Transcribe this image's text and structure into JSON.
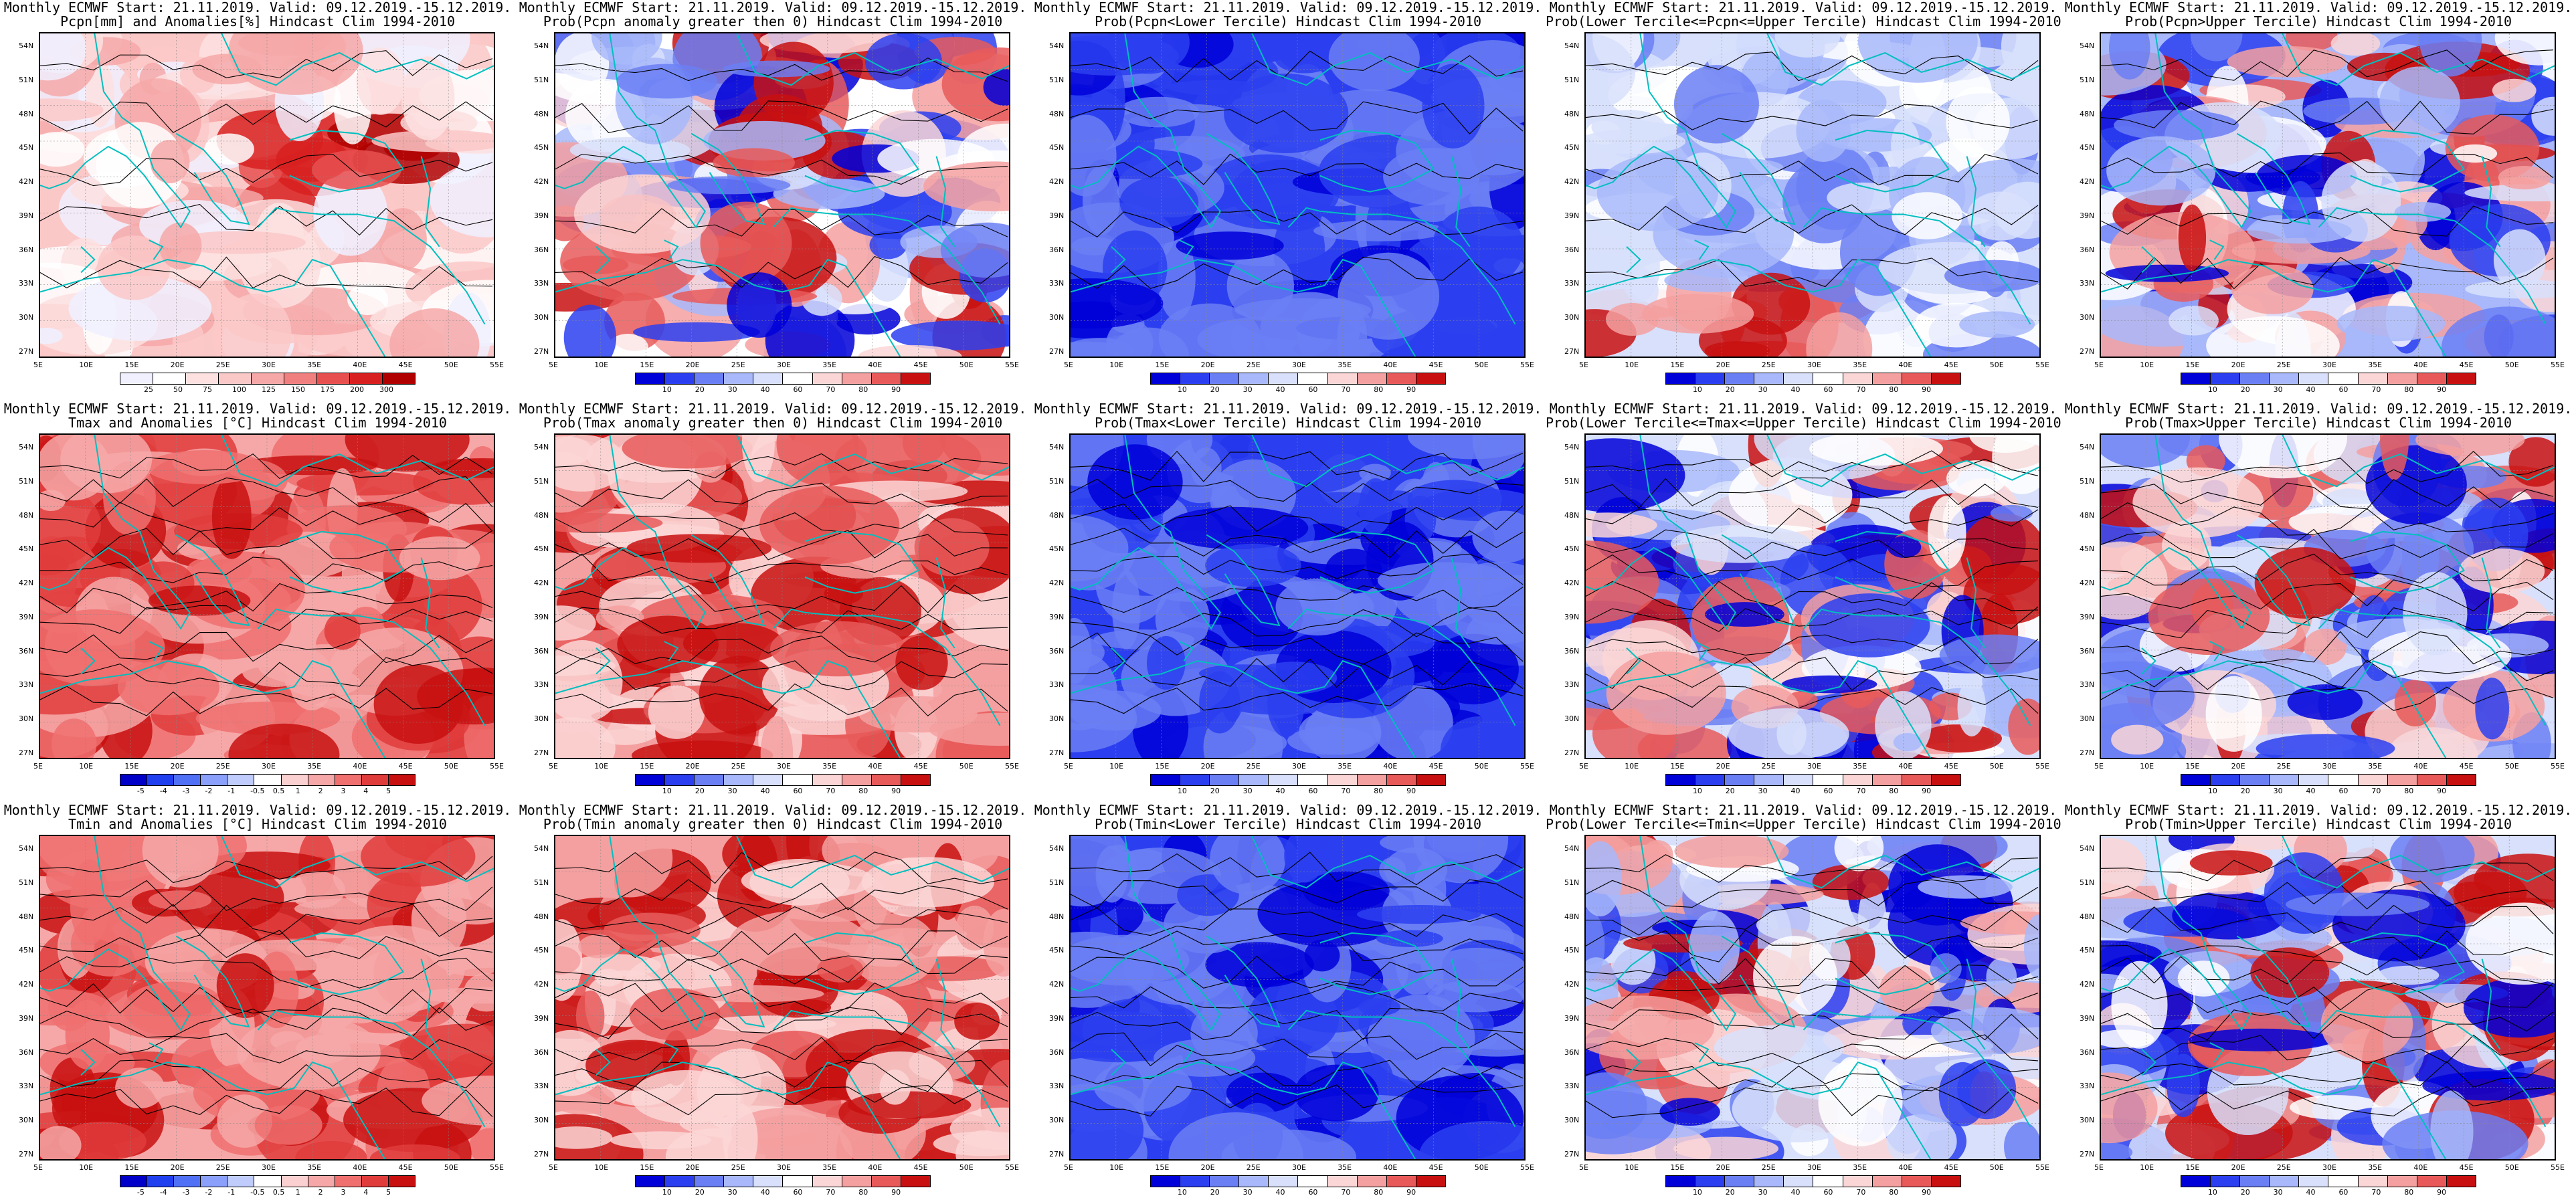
{
  "figure": {
    "panels": [
      {
        "title_line1": "Monthly ECMWF Start: 21.11.2019. Valid: 09.12.2019.-15.12.2019.",
        "title_line2": "Pcpn[mm] and Anomalies[%] Hindcast Clim 1994-2010",
        "palette": "anom_pos",
        "colorbar_ticks": [
          "25",
          "50",
          "75",
          "100",
          "125",
          "150",
          "175",
          "200",
          "300"
        ]
      },
      {
        "title_line1": "Monthly ECMWF Start: 21.11.2019. Valid: 09.12.2019.-15.12.2019.",
        "title_line2": "Prob(Pcpn anomaly greater then 0) Hindcast Clim 1994-2010",
        "palette": "prob",
        "colorbar_ticks": [
          "10",
          "20",
          "30",
          "40",
          "60",
          "70",
          "80",
          "90"
        ]
      },
      {
        "title_line1": "Monthly ECMWF Start: 21.11.2019. Valid: 09.12.2019.-15.12.2019.",
        "title_line2": "Prob(Pcpn<Lower Tercile) Hindcast Clim 1994-2010",
        "palette": "prob",
        "colorbar_ticks": [
          "10",
          "20",
          "30",
          "40",
          "60",
          "70",
          "80",
          "90"
        ]
      },
      {
        "title_line1": "Monthly ECMWF Start: 21.11.2019. Valid: 09.12.2019.-15.12.2019.",
        "title_line2": "Prob(Lower Tercile<=Pcpn<=Upper Tercile) Hindcast Clim 1994-2010",
        "palette": "prob",
        "colorbar_ticks": [
          "10",
          "20",
          "30",
          "40",
          "60",
          "70",
          "80",
          "90"
        ]
      },
      {
        "title_line1": "Monthly ECMWF Start: 21.11.2019. Valid: 09.12.2019.-15.12.2019.",
        "title_line2": "Prob(Pcpn>Upper Tercile) Hindcast Clim 1994-2010",
        "palette": "prob",
        "colorbar_ticks": [
          "10",
          "20",
          "30",
          "40",
          "60",
          "70",
          "80",
          "90"
        ]
      },
      {
        "title_line1": "Monthly ECMWF Start: 21.11.2019. Valid: 09.12.2019.-15.12.2019.",
        "title_line2": "Tmax and Anomalies [°C] Hindcast Clim 1994-2010",
        "palette": "temp",
        "colorbar_ticks": [
          "-5",
          "-4",
          "-3",
          "-2",
          "-1",
          "-0.5",
          "0.5",
          "1",
          "2",
          "3",
          "4",
          "5"
        ]
      },
      {
        "title_line1": "Monthly ECMWF Start: 21.11.2019. Valid: 09.12.2019.-15.12.2019.",
        "title_line2": "Prob(Tmax anomaly greater then 0) Hindcast Clim 1994-2010",
        "palette": "prob",
        "colorbar_ticks": [
          "10",
          "20",
          "30",
          "40",
          "60",
          "70",
          "80",
          "90"
        ]
      },
      {
        "title_line1": "Monthly ECMWF Start: 21.11.2019. Valid: 09.12.2019.-15.12.2019.",
        "title_line2": "Prob(Tmax<Lower Tercile) Hindcast Clim 1994-2010",
        "palette": "prob",
        "colorbar_ticks": [
          "10",
          "20",
          "30",
          "40",
          "60",
          "70",
          "80",
          "90"
        ]
      },
      {
        "title_line1": "Monthly ECMWF Start: 21.11.2019. Valid: 09.12.2019.-15.12.2019.",
        "title_line2": "Prob(Lower Tercile<=Tmax<=Upper Tercile) Hindcast Clim 1994-2010",
        "palette": "prob",
        "colorbar_ticks": [
          "10",
          "20",
          "30",
          "40",
          "60",
          "70",
          "80",
          "90"
        ]
      },
      {
        "title_line1": "Monthly ECMWF Start: 21.11.2019. Valid: 09.12.2019.-15.12.2019.",
        "title_line2": "Prob(Tmax>Upper Tercile) Hindcast Clim 1994-2010",
        "palette": "prob",
        "colorbar_ticks": [
          "10",
          "20",
          "30",
          "40",
          "60",
          "70",
          "80",
          "90"
        ]
      },
      {
        "title_line1": "Monthly ECMWF Start: 21.11.2019. Valid: 09.12.2019.-15.12.2019.",
        "title_line2": "Tmin and Anomalies [°C] Hindcast Clim 1994-2010",
        "palette": "temp",
        "colorbar_ticks": [
          "-5",
          "-4",
          "-3",
          "-2",
          "-1",
          "-0.5",
          "0.5",
          "1",
          "2",
          "3",
          "4",
          "5"
        ]
      },
      {
        "title_line1": "Monthly ECMWF Start: 21.11.2019. Valid: 09.12.2019.-15.12.2019.",
        "title_line2": "Prob(Tmin anomaly greater then 0) Hindcast Clim 1994-2010",
        "palette": "prob",
        "colorbar_ticks": [
          "10",
          "20",
          "30",
          "40",
          "60",
          "70",
          "80",
          "90"
        ]
      },
      {
        "title_line1": "Monthly ECMWF Start: 21.11.2019. Valid: 09.12.2019.-15.12.2019.",
        "title_line2": "Prob(Tmin<Lower Tercile) Hindcast Clim 1994-2010",
        "palette": "prob",
        "colorbar_ticks": [
          "10",
          "20",
          "30",
          "40",
          "60",
          "70",
          "80",
          "90"
        ]
      },
      {
        "title_line1": "Monthly ECMWF Start: 21.11.2019. Valid: 09.12.2019.-15.12.2019.",
        "title_line2": "Prob(Lower Tercile<=Tmin<=Upper Tercile) Hindcast Clim 1994-2010",
        "palette": "prob",
        "colorbar_ticks": [
          "10",
          "20",
          "30",
          "40",
          "60",
          "70",
          "80",
          "90"
        ]
      },
      {
        "title_line1": "Monthly ECMWF Start: 21.11.2019. Valid: 09.12.2019.-15.12.2019.",
        "title_line2": "Prob(Tmin>Upper Tercile) Hindcast Clim 1994-2010",
        "palette": "prob",
        "colorbar_ticks": [
          "10",
          "20",
          "30",
          "40",
          "60",
          "70",
          "80",
          "90"
        ]
      }
    ],
    "lat_labels": [
      "54N",
      "51N",
      "48N",
      "45N",
      "42N",
      "39N",
      "36N",
      "33N",
      "30N",
      "27N"
    ],
    "lon_labels": [
      "5E",
      "10E",
      "15E",
      "20E",
      "25E",
      "30E",
      "35E",
      "40E",
      "45E",
      "50E",
      "55E"
    ],
    "palettes": {
      "prob": [
        "#0000d8",
        "#2b3ff0",
        "#6b7ff5",
        "#a8b8fa",
        "#d8e0fb",
        "#ffffff",
        "#fbd6d6",
        "#f4a0a0",
        "#e85a5a",
        "#c81010"
      ],
      "temp": [
        "#0000c8",
        "#2040f0",
        "#5070f5",
        "#8aa0fa",
        "#c0ccfb",
        "#ffffff",
        "#fbd0d0",
        "#f6a8a8",
        "#f07070",
        "#e03c3c",
        "#c81010"
      ],
      "anom_pos": [
        "#f0f0ff",
        "#ffffff",
        "#fde0e0",
        "#fbc8c8",
        "#f6a8a8",
        "#f08080",
        "#e85050",
        "#d82020",
        "#b00000"
      ]
    },
    "colors": {
      "coastline": "#00bfbf",
      "contour": "#000000",
      "frame": "#000000"
    }
  }
}
